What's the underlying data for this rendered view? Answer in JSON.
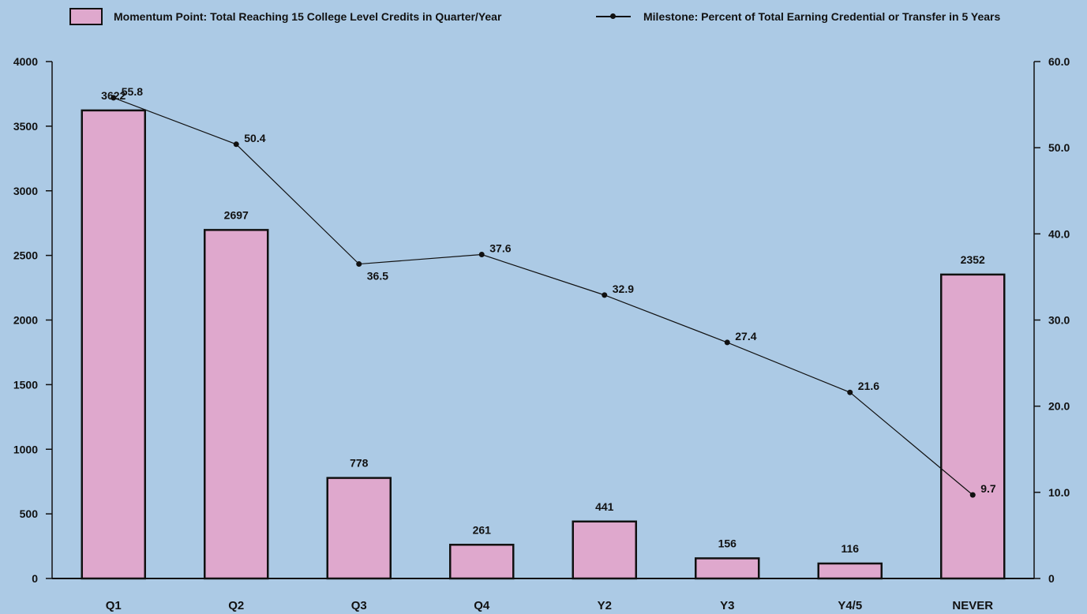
{
  "colors": {
    "background": "#ACCAE5",
    "bar_fill": "#DFA8CD",
    "bar_stroke": "#111111",
    "line": "#111111"
  },
  "legend": {
    "bar_label": "Momentum Point: Total Reaching 15 College Level Credits in Quarter/Year",
    "line_label": "Milestone: Percent of Total Earning Credential or Transfer in 5 Years"
  },
  "chart_data": {
    "type": "bar",
    "title": "",
    "xlabel": "",
    "ylabel": "",
    "categories": [
      "Q1",
      "Q2",
      "Q3",
      "Q4",
      "Y2",
      "Y3",
      "Y4/5",
      "NEVER"
    ],
    "series": [
      {
        "name": "Momentum Point: Total Reaching 15 College Level Credits in Quarter/Year",
        "type": "bar",
        "axis": "left",
        "values": [
          3622,
          2697,
          778,
          261,
          441,
          156,
          116,
          2352
        ],
        "labels": [
          "3622",
          "2697",
          "778",
          "261",
          "441",
          "156",
          "116",
          "2352"
        ]
      },
      {
        "name": "Milestone: Percent of Total Earning Credential or Transfer in 5 Years",
        "type": "line",
        "axis": "right",
        "values": [
          55.8,
          50.4,
          36.5,
          37.6,
          32.9,
          27.4,
          21.6,
          9.7
        ],
        "labels": [
          "55.8",
          "50.4",
          "36.5",
          "37.6",
          "32.9",
          "27.4",
          "21.6",
          "9.7"
        ]
      }
    ],
    "y_left": {
      "ylim": [
        0,
        4000
      ],
      "ticks": [
        0,
        500,
        1000,
        1500,
        2000,
        2500,
        3000,
        3500,
        4000
      ],
      "tick_labels": [
        "0",
        "500",
        "1000",
        "1500",
        "2000",
        "2500",
        "3000",
        "3500",
        "4000"
      ]
    },
    "y_right": {
      "ylim": [
        0,
        60
      ],
      "ticks": [
        0,
        10,
        20,
        30,
        40,
        50,
        60
      ],
      "tick_labels": [
        "0",
        "10.0",
        "20.0",
        "30.0",
        "40.0",
        "50.0",
        "60.0"
      ]
    },
    "grid": false,
    "legend_position": "top"
  }
}
